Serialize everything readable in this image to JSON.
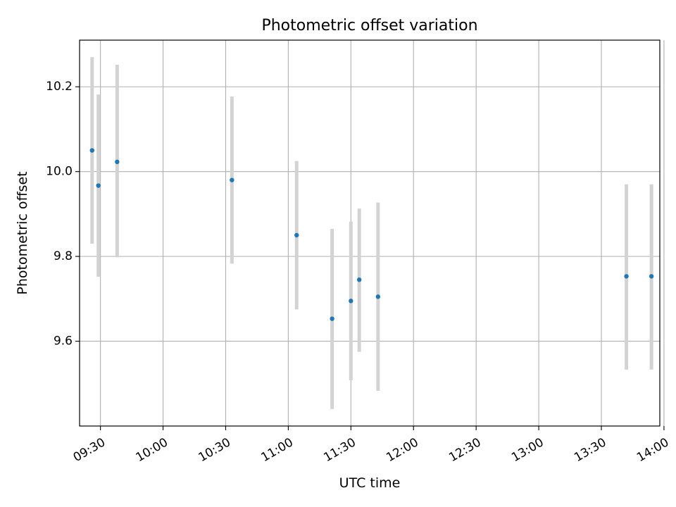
{
  "chart_data": {
    "type": "scatter",
    "title": "Photometric offset variation",
    "xlabel": "UTC time",
    "ylabel": "Photometric offset",
    "x_axis": {
      "kind": "time",
      "range": [
        "09:20",
        "13:58"
      ],
      "ticks": [
        "09:30",
        "10:00",
        "10:30",
        "11:00",
        "11:30",
        "12:00",
        "12:30",
        "13:00",
        "13:30",
        "14:00"
      ]
    },
    "y_axis": {
      "range": [
        9.4,
        10.31
      ],
      "ticks": [
        9.6,
        9.8,
        10.0,
        10.2
      ],
      "tick_labels": [
        "9.6",
        "9.8",
        "10.0",
        "10.2"
      ]
    },
    "grid": true,
    "point_color": "#1f77b4",
    "errorbar_color": "#d3d3d3",
    "points": [
      {
        "time": "09:26",
        "y": 10.05,
        "ylow": 9.83,
        "yhigh": 10.27
      },
      {
        "time": "09:29",
        "y": 9.967,
        "ylow": 9.752,
        "yhigh": 10.182
      },
      {
        "time": "09:38",
        "y": 10.023,
        "ylow": 9.798,
        "yhigh": 10.252
      },
      {
        "time": "10:33",
        "y": 9.98,
        "ylow": 9.783,
        "yhigh": 10.177
      },
      {
        "time": "11:04",
        "y": 9.85,
        "ylow": 9.675,
        "yhigh": 10.025
      },
      {
        "time": "11:21",
        "y": 9.653,
        "ylow": 9.44,
        "yhigh": 9.865
      },
      {
        "time": "11:30",
        "y": 9.695,
        "ylow": 9.508,
        "yhigh": 9.882
      },
      {
        "time": "11:34",
        "y": 9.745,
        "ylow": 9.575,
        "yhigh": 9.913
      },
      {
        "time": "11:43",
        "y": 9.705,
        "ylow": 9.483,
        "yhigh": 9.927
      },
      {
        "time": "13:42",
        "y": 9.753,
        "ylow": 9.533,
        "yhigh": 9.97
      },
      {
        "time": "13:54",
        "y": 9.753,
        "ylow": 9.533,
        "yhigh": 9.97
      }
    ]
  }
}
